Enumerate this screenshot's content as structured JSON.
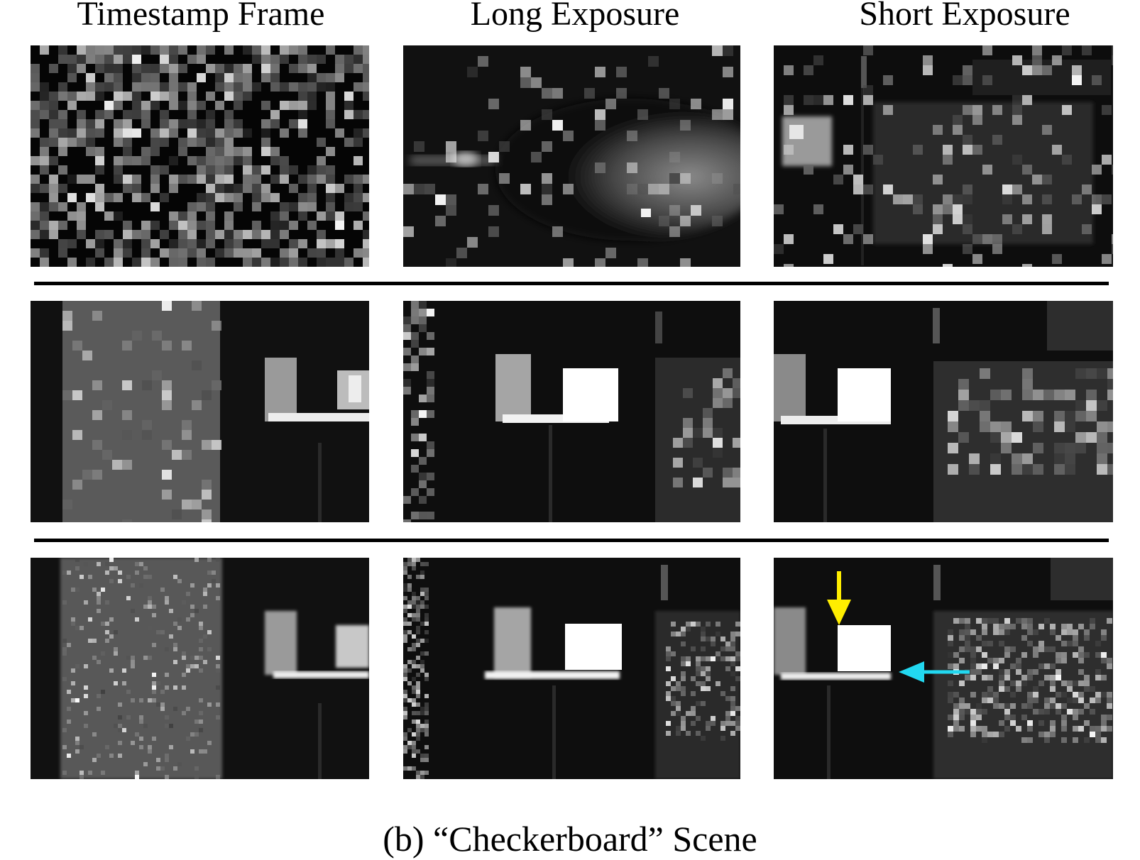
{
  "figure": {
    "column_titles": [
      "Timestamp Frame",
      "Long Exposure",
      "Short Exposure"
    ],
    "caption": "(b) “Checkerboard” Scene",
    "rows": [
      {
        "name": "row-1",
        "panels": [
          "timestamp-frame",
          "long-exposure",
          "short-exposure"
        ]
      },
      {
        "name": "row-2",
        "panels": [
          "timestamp-frame",
          "long-exposure",
          "short-exposure"
        ]
      },
      {
        "name": "row-3",
        "panels": [
          "timestamp-frame",
          "long-exposure",
          "short-exposure"
        ]
      }
    ],
    "annotations": [
      {
        "name": "yellow-arrow",
        "direction": "down",
        "color": "#ffee00",
        "panel": "row-3 short-exposure"
      },
      {
        "name": "cyan-arrow",
        "direction": "left",
        "color": "#22d8f0",
        "panel": "row-3 short-exposure"
      }
    ]
  }
}
